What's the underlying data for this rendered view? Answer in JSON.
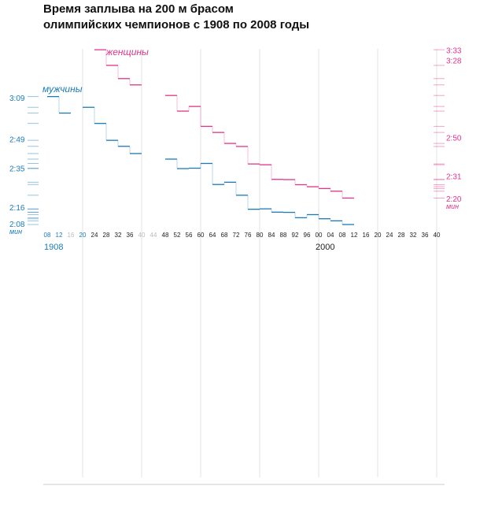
{
  "chart_data": {
    "type": "line",
    "title_line1": "Время заплыва на 200 м брасом",
    "title_line2": "олимпийских чемпионов с 1908 по 2008 годы",
    "colors": {
      "men": "#1a7bb8",
      "women": "#e0358a",
      "tick_dark": "#222222",
      "tick_muted": "#bbbbbb",
      "grid": "#e3e3e3"
    },
    "x_ticks": [
      {
        "year": 1908,
        "label": "08",
        "style": "men"
      },
      {
        "year": 1912,
        "label": "12",
        "style": "men"
      },
      {
        "year": 1916,
        "label": "16",
        "style": "muted"
      },
      {
        "year": 1920,
        "label": "20",
        "style": "men"
      },
      {
        "year": 1924,
        "label": "24",
        "style": "dark"
      },
      {
        "year": 1928,
        "label": "28",
        "style": "dark"
      },
      {
        "year": 1932,
        "label": "32",
        "style": "dark"
      },
      {
        "year": 1936,
        "label": "36",
        "style": "dark"
      },
      {
        "year": 1940,
        "label": "40",
        "style": "muted"
      },
      {
        "year": 1944,
        "label": "44",
        "style": "muted"
      },
      {
        "year": 1948,
        "label": "48",
        "style": "dark"
      },
      {
        "year": 1952,
        "label": "52",
        "style": "dark"
      },
      {
        "year": 1956,
        "label": "56",
        "style": "dark"
      },
      {
        "year": 1960,
        "label": "60",
        "style": "dark"
      },
      {
        "year": 1964,
        "label": "64",
        "style": "dark"
      },
      {
        "year": 1968,
        "label": "68",
        "style": "dark"
      },
      {
        "year": 1972,
        "label": "72",
        "style": "dark"
      },
      {
        "year": 1976,
        "label": "76",
        "style": "dark"
      },
      {
        "year": 1980,
        "label": "80",
        "style": "dark"
      },
      {
        "year": 1984,
        "label": "84",
        "style": "dark"
      },
      {
        "year": 1988,
        "label": "88",
        "style": "dark"
      },
      {
        "year": 1992,
        "label": "92",
        "style": "dark"
      },
      {
        "year": 1996,
        "label": "96",
        "style": "dark"
      },
      {
        "year": 2000,
        "label": "00",
        "style": "dark"
      },
      {
        "year": 2004,
        "label": "04",
        "style": "dark"
      },
      {
        "year": 2008,
        "label": "08",
        "style": "dark"
      },
      {
        "year": 2012,
        "label": "12",
        "style": "dark"
      },
      {
        "year": 2016,
        "label": "16",
        "style": "dark"
      },
      {
        "year": 2020,
        "label": "20",
        "style": "dark"
      },
      {
        "year": 2024,
        "label": "24",
        "style": "dark"
      },
      {
        "year": 2028,
        "label": "28",
        "style": "dark"
      },
      {
        "year": 2032,
        "label": "32",
        "style": "dark"
      },
      {
        "year": 2036,
        "label": "36",
        "style": "dark"
      },
      {
        "year": 2040,
        "label": "40",
        "style": "dark"
      }
    ],
    "era_labels": [
      {
        "year": 1908,
        "label": "1908",
        "style": "men"
      },
      {
        "year": 2000,
        "label": "2000",
        "style": "dark"
      }
    ],
    "left_axis": {
      "ticks": [
        {
          "seconds": 189,
          "label": "3:09"
        },
        {
          "seconds": 169,
          "label": "2:49"
        },
        {
          "seconds": 155,
          "label": "2:35"
        },
        {
          "seconds": 136,
          "label": "2:16"
        },
        {
          "seconds": 128,
          "label": "2:08"
        }
      ],
      "unit": "мин"
    },
    "right_axis": {
      "ticks": [
        {
          "seconds": 213,
          "label": "3:33"
        },
        {
          "seconds": 208,
          "label": "3:28"
        },
        {
          "seconds": 170,
          "label": "2:50"
        },
        {
          "seconds": 151,
          "label": "2:31"
        },
        {
          "seconds": 140,
          "label": "2:20"
        }
      ],
      "unit": "мин"
    },
    "vertical_grid_years": [
      1920,
      1940,
      1960,
      1980,
      2000,
      2020,
      2040
    ],
    "series": [
      {
        "name": "мужчины",
        "key": "men",
        "x": [
          1908,
          1912,
          1920,
          1924,
          1928,
          1932,
          1936,
          1948,
          1952,
          1956,
          1960,
          1964,
          1968,
          1972,
          1976,
          1980,
          1984,
          1988,
          1992,
          1996,
          2000,
          2004,
          2008
        ],
        "y": [
          189.6,
          181.6,
          184.4,
          176.6,
          168.4,
          165.5,
          162.0,
          159.3,
          154.7,
          154.9,
          157.2,
          147.0,
          148.1,
          141.8,
          135.0,
          135.2,
          133.6,
          133.5,
          130.9,
          132.4,
          130.4,
          129.4,
          127.6
        ]
      },
      {
        "name": "женщины",
        "key": "women",
        "x": [
          1924,
          1928,
          1932,
          1936,
          1948,
          1952,
          1956,
          1960,
          1964,
          1968,
          1972,
          1976,
          1980,
          1984,
          1988,
          1992,
          1996,
          2000,
          2004,
          2008
        ],
        "y": [
          213.2,
          205.5,
          199.0,
          195.9,
          190.7,
          183.0,
          185.3,
          175.5,
          172.5,
          167.1,
          165.6,
          157.0,
          156.6,
          149.4,
          149.3,
          146.8,
          145.8,
          144.9,
          143.6,
          140.2
        ]
      }
    ]
  }
}
